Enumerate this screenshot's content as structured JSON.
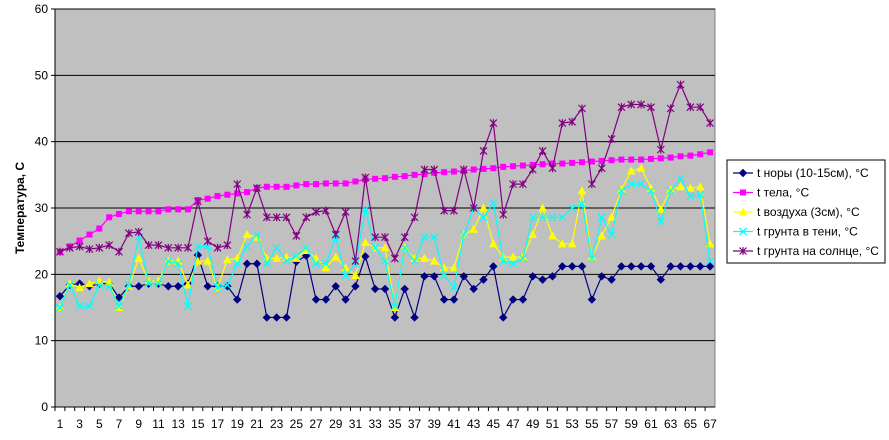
{
  "chart_data": {
    "type": "line",
    "title": "",
    "xlabel": "",
    "ylabel": "Температура, С",
    "ylim": [
      0,
      60
    ],
    "yticks": [
      0,
      10,
      20,
      30,
      40,
      50,
      60
    ],
    "xticks": [
      1,
      3,
      5,
      7,
      9,
      11,
      13,
      15,
      17,
      19,
      21,
      23,
      25,
      27,
      29,
      31,
      33,
      35,
      37,
      39,
      41,
      43,
      45,
      47,
      49,
      51,
      53,
      55,
      57,
      59,
      61,
      63,
      65,
      67
    ],
    "x": [
      1,
      2,
      3,
      4,
      5,
      6,
      7,
      8,
      9,
      10,
      11,
      12,
      13,
      14,
      15,
      16,
      17,
      18,
      19,
      20,
      21,
      22,
      23,
      24,
      25,
      26,
      27,
      28,
      29,
      30,
      31,
      32,
      33,
      34,
      35,
      36,
      37,
      38,
      39,
      40,
      41,
      42,
      43,
      44,
      45,
      46,
      47,
      48,
      49,
      50,
      51,
      52,
      53,
      54,
      55,
      56,
      57,
      58,
      59,
      60,
      61,
      62,
      63,
      64,
      65,
      66,
      67
    ],
    "grid": "horizontal",
    "plot_background": "#c0c0c0",
    "legend_position": "right",
    "series": [
      {
        "name": "t норы (10-15см), °С",
        "color": "#000080",
        "marker": "diamond",
        "values": [
          16.7,
          18.4,
          18.6,
          18.2,
          18.6,
          18.6,
          16.5,
          18.2,
          18.2,
          18.6,
          18.6,
          18.2,
          18.2,
          18.6,
          22.9,
          18.2,
          18.2,
          18.2,
          16.2,
          21.6,
          21.6,
          13.5,
          13.5,
          13.5,
          21.9,
          22.8,
          16.2,
          16.2,
          18.2,
          16.2,
          18.2,
          22.7,
          17.8,
          17.8,
          13.5,
          17.8,
          13.5,
          19.7,
          19.7,
          16.2,
          16.2,
          19.7,
          17.8,
          19.2,
          21.2,
          13.5,
          16.2,
          16.2,
          19.7,
          19.2,
          19.7,
          21.2,
          21.2,
          21.2,
          16.2,
          19.7,
          19.2,
          21.2,
          21.2,
          21.2,
          21.2,
          19.2,
          21.2,
          21.2,
          21.2,
          21.2,
          21.2
        ]
      },
      {
        "name": "t тела, °С",
        "color": "#ff00ff",
        "marker": "square",
        "values": [
          23.4,
          24.2,
          25.1,
          26.0,
          26.9,
          28.6,
          29.1,
          29.5,
          29.5,
          29.5,
          29.5,
          29.8,
          29.8,
          29.8,
          31.2,
          31.4,
          31.8,
          32.0,
          32.2,
          32.4,
          33.0,
          33.2,
          33.2,
          33.2,
          33.4,
          33.6,
          33.6,
          33.7,
          33.7,
          33.7,
          34.0,
          34.3,
          34.4,
          34.5,
          34.7,
          34.8,
          35.0,
          35.1,
          35.3,
          35.4,
          35.5,
          35.6,
          35.8,
          35.9,
          36.0,
          36.2,
          36.3,
          36.4,
          36.5,
          36.6,
          36.7,
          36.7,
          36.8,
          36.9,
          37.0,
          37.1,
          37.2,
          37.3,
          37.3,
          37.3,
          37.4,
          37.5,
          37.6,
          37.8,
          37.9,
          38.1,
          38.4
        ]
      },
      {
        "name": "t воздуха (3см), °С",
        "color": "#ffff00",
        "marker": "triangle",
        "values": [
          15.0,
          18.6,
          18.0,
          18.6,
          19.0,
          18.8,
          15.0,
          18.2,
          22.4,
          19.0,
          19.0,
          22.0,
          22.0,
          18.4,
          22.0,
          22.0,
          18.0,
          22.2,
          22.4,
          26.0,
          25.6,
          22.4,
          22.4,
          22.6,
          22.4,
          23.6,
          22.4,
          21.0,
          22.6,
          21.0,
          19.8,
          24.8,
          24.0,
          24.0,
          15.0,
          24.0,
          22.4,
          22.4,
          22.0,
          21.0,
          21.0,
          26.0,
          26.8,
          30.0,
          24.6,
          22.6,
          22.6,
          22.6,
          26.0,
          30.0,
          25.8,
          24.6,
          24.6,
          32.6,
          22.6,
          25.8,
          28.6,
          32.8,
          35.6,
          36.0,
          33.0,
          29.8,
          32.8,
          33.2,
          33.0,
          33.2,
          24.6
        ]
      },
      {
        "name": "t грунта в тени, °С",
        "color": "#00ffff",
        "marker": "star",
        "values": [
          15.0,
          18.4,
          15.2,
          15.2,
          18.4,
          18.2,
          15.2,
          18.4,
          25.6,
          18.6,
          18.6,
          22.0,
          21.6,
          15.2,
          24.2,
          24.2,
          18.0,
          18.4,
          21.6,
          24.2,
          26.0,
          21.6,
          24.0,
          22.0,
          22.8,
          24.0,
          21.6,
          21.6,
          25.6,
          19.8,
          21.6,
          29.8,
          24.0,
          22.0,
          15.2,
          24.0,
          22.0,
          25.6,
          25.6,
          19.8,
          18.0,
          26.0,
          30.0,
          28.6,
          30.8,
          22.0,
          21.6,
          22.4,
          28.6,
          28.6,
          28.6,
          28.6,
          30.0,
          30.6,
          22.4,
          28.6,
          26.0,
          32.6,
          33.6,
          33.6,
          32.6,
          28.0,
          32.6,
          34.4,
          31.8,
          32.0,
          22.0
        ]
      },
      {
        "name": "t грунта на солнце, °С",
        "color": "#800080",
        "marker": "asterisk",
        "values": [
          23.4,
          24.0,
          24.2,
          23.8,
          24.0,
          24.4,
          23.4,
          26.2,
          26.4,
          24.4,
          24.4,
          24.0,
          24.0,
          24.0,
          31.0,
          25.0,
          24.0,
          24.4,
          33.6,
          29.0,
          33.0,
          28.6,
          28.6,
          28.6,
          25.8,
          28.6,
          29.4,
          29.6,
          26.0,
          29.4,
          22.0,
          34.6,
          25.6,
          25.6,
          22.4,
          25.6,
          28.6,
          35.8,
          35.8,
          29.6,
          29.6,
          35.8,
          30.0,
          38.6,
          42.8,
          29.0,
          33.6,
          33.6,
          35.8,
          38.6,
          36.0,
          42.8,
          43.0,
          45.0,
          33.6,
          36.0,
          40.4,
          45.2,
          45.6,
          45.6,
          45.2,
          38.8,
          45.0,
          48.6,
          45.2,
          45.2,
          42.8
        ]
      }
    ]
  }
}
